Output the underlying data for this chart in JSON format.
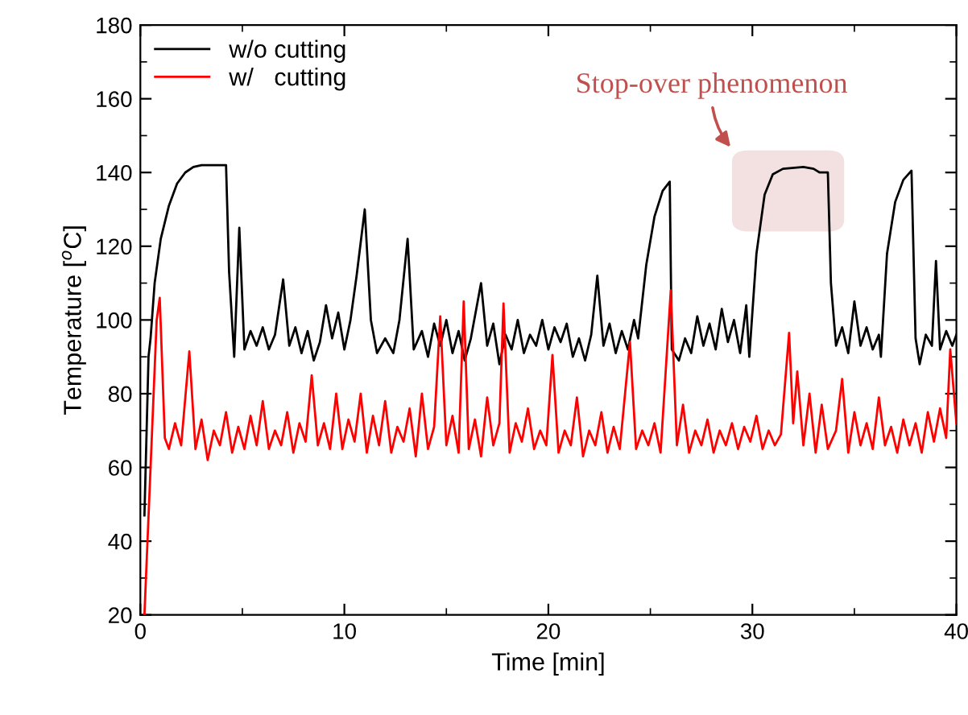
{
  "chart_data": {
    "type": "line",
    "xlabel": "Time [min]",
    "ylabel": "Temperature [$^{o}$C]",
    "xlim": [
      0,
      40
    ],
    "xticks": [
      0,
      10,
      20,
      30,
      40
    ],
    "ylim": [
      20,
      180
    ],
    "yticks": [
      20,
      40,
      60,
      80,
      100,
      120,
      140,
      160,
      180
    ],
    "grid": false,
    "legend": "top left",
    "line_style": "solid",
    "marker": "none",
    "annotations": [
      "Stop-over phenomenon"
    ],
    "series": [
      {
        "name": "w/o cutting",
        "color": "#000000",
        "x": [
          0.2,
          0.4,
          0.5,
          0.7,
          1.0,
          1.4,
          1.8,
          2.2,
          2.6,
          3.0,
          4.2,
          4.35,
          4.6,
          4.85,
          5.1,
          5.4,
          5.7,
          6.0,
          6.3,
          6.6,
          7.0,
          7.3,
          7.6,
          7.9,
          8.2,
          8.5,
          8.8,
          9.1,
          9.4,
          9.7,
          10.0,
          10.3,
          10.6,
          11.0,
          11.3,
          11.6,
          12.0,
          12.4,
          12.7,
          13.1,
          13.4,
          13.8,
          14.1,
          14.4,
          14.7,
          15.0,
          15.3,
          15.6,
          15.9,
          16.2,
          16.7,
          17.0,
          17.3,
          17.6,
          17.9,
          18.2,
          18.5,
          18.8,
          19.1,
          19.4,
          19.7,
          20.0,
          20.3,
          20.6,
          20.9,
          21.2,
          21.5,
          21.8,
          22.1,
          22.4,
          22.7,
          23.0,
          23.3,
          23.6,
          23.9,
          24.2,
          24.4,
          24.8,
          25.2,
          25.6,
          25.95,
          26.05,
          26.4,
          26.7,
          27.0,
          27.3,
          27.6,
          27.9,
          28.2,
          28.5,
          28.8,
          29.1,
          29.4,
          29.7,
          29.85,
          30.2,
          30.6,
          31.0,
          31.5,
          32.5,
          33.0,
          33.3,
          33.7,
          33.85,
          34.1,
          34.4,
          34.7,
          35.0,
          35.3,
          35.6,
          35.9,
          36.2,
          36.3,
          36.6,
          37.0,
          37.4,
          37.8,
          38.0,
          38.2,
          38.5,
          38.8,
          39.0,
          39.2,
          39.5,
          39.8,
          40.0
        ],
        "values": [
          47,
          90,
          95,
          110,
          122,
          131,
          137,
          140,
          141.5,
          142,
          142,
          113,
          90,
          125,
          92,
          97,
          93,
          98,
          92,
          96,
          111,
          93,
          98,
          91,
          97,
          89,
          94,
          104,
          95,
          102,
          92,
          100,
          112,
          130,
          100,
          91,
          95,
          91,
          100,
          122,
          92,
          97,
          90,
          99,
          93,
          100,
          91,
          97,
          89,
          95,
          110,
          93,
          99,
          88,
          96,
          92,
          100,
          91,
          96,
          93,
          100,
          92,
          98,
          94,
          99,
          90,
          95,
          89,
          96,
          112,
          93,
          99,
          91,
          97,
          92,
          100,
          95,
          115,
          128,
          135,
          137.5,
          92,
          89,
          95,
          91,
          101,
          93,
          99,
          92,
          103,
          94,
          100,
          91,
          104,
          90,
          118,
          134,
          139.5,
          141,
          141.5,
          141,
          140,
          140,
          110,
          93,
          98,
          91,
          105,
          93,
          98,
          92,
          96,
          90,
          118,
          132,
          138,
          140.5,
          95,
          88,
          96,
          93,
          116,
          92,
          97,
          93,
          96
        ]
      },
      {
        "name": "w/   cutting",
        "color": "#ff0000",
        "x": [
          0.2,
          0.5,
          0.8,
          0.95,
          1.2,
          1.4,
          1.7,
          2.0,
          2.4,
          2.7,
          3.0,
          3.3,
          3.6,
          3.9,
          4.2,
          4.5,
          4.8,
          5.1,
          5.4,
          5.7,
          6.0,
          6.3,
          6.6,
          6.9,
          7.2,
          7.5,
          7.8,
          8.1,
          8.4,
          8.7,
          9.0,
          9.3,
          9.6,
          9.9,
          10.2,
          10.5,
          10.8,
          11.1,
          11.4,
          11.7,
          12.0,
          12.3,
          12.6,
          12.9,
          13.2,
          13.5,
          13.8,
          14.1,
          14.4,
          14.7,
          15.0,
          15.3,
          15.6,
          15.85,
          16.1,
          16.4,
          16.7,
          17.0,
          17.3,
          17.6,
          17.8,
          18.1,
          18.4,
          18.7,
          19.0,
          19.3,
          19.6,
          19.9,
          20.2,
          20.5,
          20.8,
          21.1,
          21.4,
          21.7,
          22.0,
          22.3,
          22.6,
          22.9,
          23.2,
          23.5,
          24.0,
          24.3,
          24.6,
          24.9,
          25.2,
          25.5,
          26.0,
          26.3,
          26.6,
          26.9,
          27.2,
          27.5,
          27.8,
          28.1,
          28.4,
          28.7,
          29.0,
          29.3,
          29.6,
          29.9,
          30.2,
          30.5,
          30.8,
          31.1,
          31.4,
          31.8,
          32.0,
          32.2,
          32.5,
          32.8,
          33.1,
          33.4,
          33.7,
          34.1,
          34.4,
          34.7,
          35.0,
          35.3,
          35.6,
          35.9,
          36.2,
          36.5,
          36.8,
          37.1,
          37.4,
          37.7,
          38.0,
          38.3,
          38.6,
          38.9,
          39.2,
          39.5,
          39.7,
          40.0
        ],
        "values": [
          20,
          60,
          100,
          106,
          68,
          65,
          72,
          66,
          91.5,
          65,
          73,
          62,
          70,
          66,
          75,
          64,
          71,
          65,
          74,
          66,
          78,
          65,
          70,
          66,
          75,
          64,
          72,
          67,
          85,
          66,
          72,
          65,
          80,
          65,
          73,
          67,
          80,
          64,
          74,
          66,
          78,
          64,
          71,
          67,
          76,
          63,
          80,
          65,
          71,
          101,
          66,
          74,
          64,
          105,
          65,
          73,
          63,
          79,
          66,
          72,
          104.5,
          64,
          72,
          67,
          76,
          65,
          70,
          66,
          90.5,
          64,
          70,
          66,
          79,
          63,
          70,
          66,
          75,
          64,
          71,
          65,
          94,
          65,
          70,
          66,
          72,
          64,
          108,
          66,
          77,
          64,
          70,
          66,
          73,
          64,
          70,
          66,
          72,
          65,
          71,
          67,
          74,
          65,
          70,
          66,
          69,
          96.5,
          72,
          86,
          66,
          80,
          64,
          77,
          65,
          70,
          84,
          64,
          75,
          66,
          72,
          65,
          79,
          66,
          71,
          64,
          73,
          66,
          72,
          64,
          75,
          67,
          76,
          68,
          92,
          72
        ]
      }
    ]
  }
}
